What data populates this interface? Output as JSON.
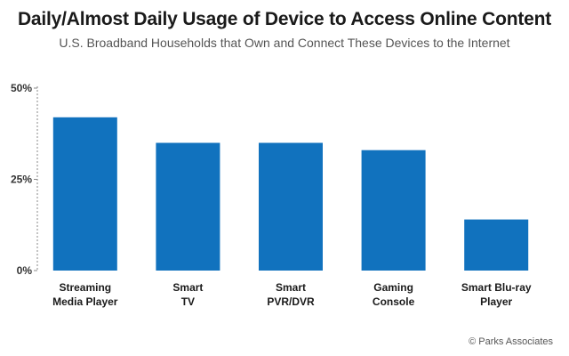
{
  "header": {
    "title": "Daily/Almost Daily Usage of Device to Access Online Content",
    "subtitle": "U.S. Broadband Households that Own and Connect These Devices to the Internet"
  },
  "credit": "© Parks Associates",
  "colors": {
    "bar": "#1172BE",
    "axis": "#888888"
  },
  "chart_data": {
    "type": "bar",
    "title": "Daily/Almost Daily Usage of Device to Access Online Content",
    "subtitle": "U.S. Broadband Households that Own and Connect These Devices to the Internet",
    "xlabel": "",
    "ylabel": "",
    "categories": [
      [
        "Streaming",
        "Media Player"
      ],
      [
        "Smart",
        "TV"
      ],
      [
        "Smart",
        "PVR/DVR"
      ],
      [
        "Gaming",
        "Console"
      ],
      [
        "Smart Blu-ray",
        "Player"
      ]
    ],
    "values": [
      42,
      35,
      35,
      33,
      14
    ],
    "unit": "%",
    "ylim": [
      0,
      50
    ],
    "yticks": [
      {
        "value": 0,
        "label": "0%"
      },
      {
        "value": 25,
        "label": "25%"
      },
      {
        "value": 50,
        "label": "50%"
      }
    ],
    "grid": false,
    "legend": "none"
  }
}
